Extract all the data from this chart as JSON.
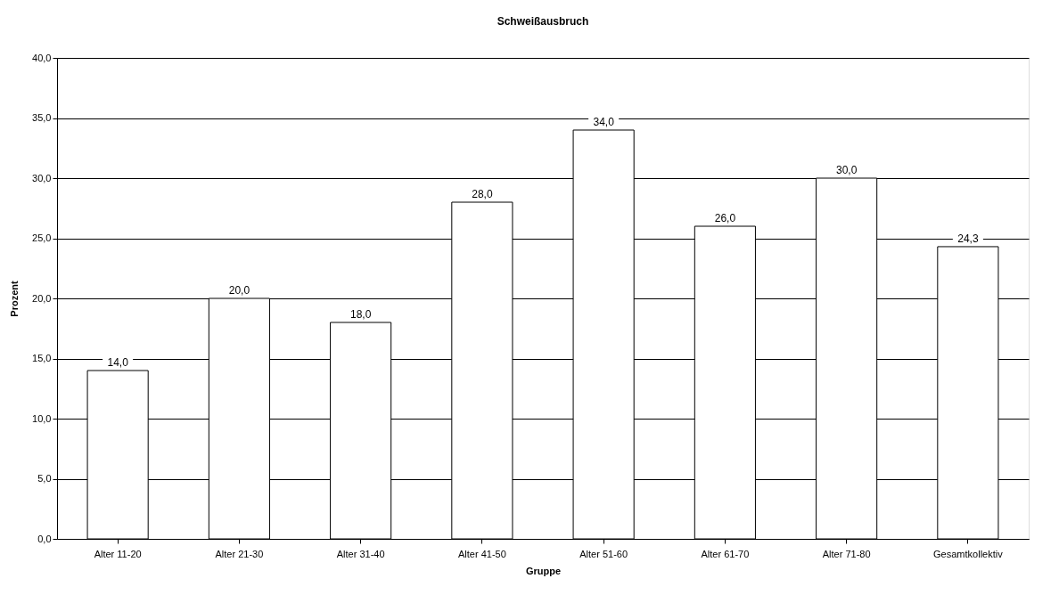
{
  "chart_data": {
    "type": "bar",
    "title": "Schweißausbruch",
    "xlabel": "Gruppe",
    "ylabel": "Prozent",
    "categories": [
      "Alter 11-20",
      "Alter 21-30",
      "Alter 31-40",
      "Alter 41-50",
      "Alter 51-60",
      "Alter 61-70",
      "Alter 71-80",
      "Gesamtkollektiv"
    ],
    "values": [
      14.0,
      20.0,
      18.0,
      28.0,
      34.0,
      26.0,
      30.0,
      24.3
    ],
    "value_labels": [
      "14,0",
      "20,0",
      "18,0",
      "28,0",
      "34,0",
      "26,0",
      "30,0",
      "24,3"
    ],
    "color": "#ffffff",
    "ylim": [
      0,
      40
    ],
    "yticks": [
      {
        "value": 0,
        "label": "0,0"
      },
      {
        "value": 5,
        "label": "5,0"
      },
      {
        "value": 10,
        "label": "10,0"
      },
      {
        "value": 15,
        "label": "15,0"
      },
      {
        "value": 20,
        "label": "20,0"
      },
      {
        "value": 25,
        "label": "25,0"
      },
      {
        "value": 30,
        "label": "30,0"
      },
      {
        "value": 35,
        "label": "35,0"
      },
      {
        "value": 40,
        "label": "40,0"
      }
    ],
    "grid": "y"
  }
}
